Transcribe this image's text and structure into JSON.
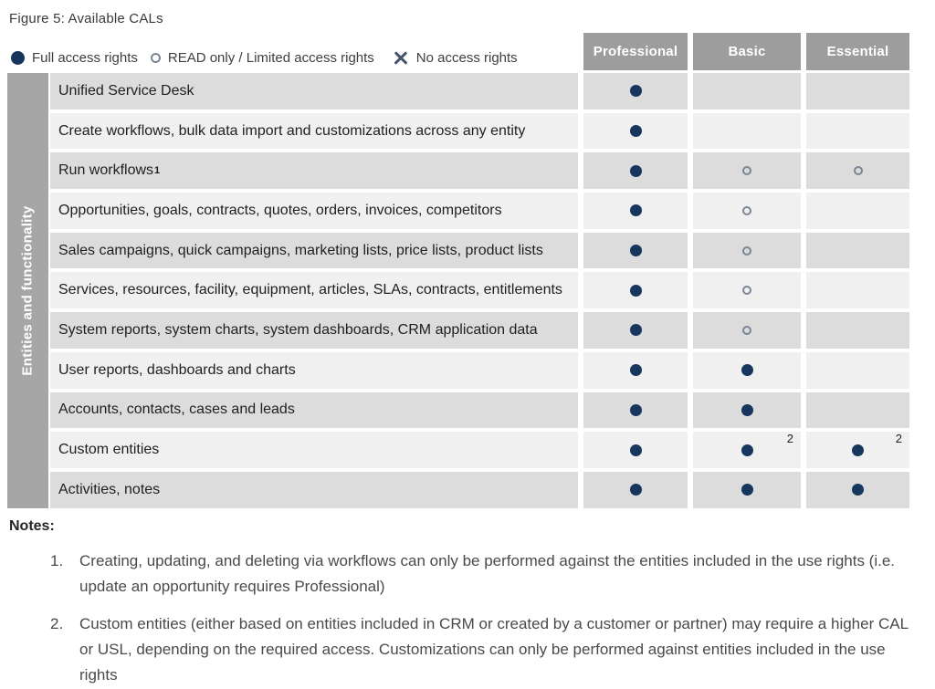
{
  "figure_title": "Figure 5: Available CALs",
  "legend": {
    "full_label": "Full access rights",
    "read_label": "READ only / Limited access rights",
    "none_label": "No access rights"
  },
  "icons": {
    "full": "filled-circle",
    "read": "open-circle",
    "none": "x-mark"
  },
  "table": {
    "side_label": "Entities and functionality",
    "columns": [
      "Professional",
      "Basic",
      "Essential"
    ],
    "rows": [
      {
        "label": "Unified Service Desk",
        "cells": [
          {
            "symbol": "full"
          },
          {
            "symbol": "none"
          },
          {
            "symbol": "none"
          }
        ]
      },
      {
        "label": "Create workflows, bulk data import and customizations across any entity",
        "cells": [
          {
            "symbol": "full"
          },
          {
            "symbol": "none"
          },
          {
            "symbol": "none"
          }
        ]
      },
      {
        "label": "Run workflows",
        "label_sup": "1",
        "cells": [
          {
            "symbol": "full"
          },
          {
            "symbol": "read"
          },
          {
            "symbol": "read"
          }
        ]
      },
      {
        "label": "Opportunities, goals, contracts, quotes, orders, invoices, competitors",
        "cells": [
          {
            "symbol": "full"
          },
          {
            "symbol": "read"
          },
          {
            "symbol": "none"
          }
        ]
      },
      {
        "label": "Sales campaigns, quick campaigns, marketing lists, price lists, product lists",
        "cells": [
          {
            "symbol": "full"
          },
          {
            "symbol": "read"
          },
          {
            "symbol": "none"
          }
        ]
      },
      {
        "label": "Services, resources, facility, equipment, articles, SLAs, contracts, entitlements",
        "cells": [
          {
            "symbol": "full"
          },
          {
            "symbol": "read"
          },
          {
            "symbol": "none"
          }
        ]
      },
      {
        "label": "System reports, system charts, system dashboards, CRM application data",
        "cells": [
          {
            "symbol": "full"
          },
          {
            "symbol": "read"
          },
          {
            "symbol": "none"
          }
        ]
      },
      {
        "label": "User reports, dashboards and charts",
        "cells": [
          {
            "symbol": "full"
          },
          {
            "symbol": "full"
          },
          {
            "symbol": "none"
          }
        ]
      },
      {
        "label": "Accounts, contacts, cases and leads",
        "cells": [
          {
            "symbol": "full"
          },
          {
            "symbol": "full"
          },
          {
            "symbol": "none"
          }
        ]
      },
      {
        "label": "Custom entities",
        "cells": [
          {
            "symbol": "full"
          },
          {
            "symbol": "full",
            "sup": "2"
          },
          {
            "symbol": "full",
            "sup": "2"
          }
        ]
      },
      {
        "label": "Activities, notes",
        "cells": [
          {
            "symbol": "full"
          },
          {
            "symbol": "full"
          },
          {
            "symbol": "full"
          }
        ]
      }
    ]
  },
  "notes": {
    "heading": "Notes:",
    "items": [
      {
        "num": "1.",
        "text": "Creating, updating, and deleting via workflows can only be performed against the entities included in the use rights (i.e. update an opportunity requires Professional)"
      },
      {
        "num": "2.",
        "text": "Custom entities (either based on entities included in CRM or created by a customer or partner) may require a higher CAL or USL, depending on the required access. Customizations can only be performed against entities included in the use rights"
      }
    ]
  },
  "colors": {
    "header_bg": "#9d9d9d",
    "side_band_bg": "#a6a6a6",
    "row_stripe_dark": "#dcdcdc",
    "row_stripe_light": "#f0f0f0",
    "full_access_dot": "#17365d",
    "no_access_x": "#44546a",
    "read_only_ring": "#7a8694"
  }
}
